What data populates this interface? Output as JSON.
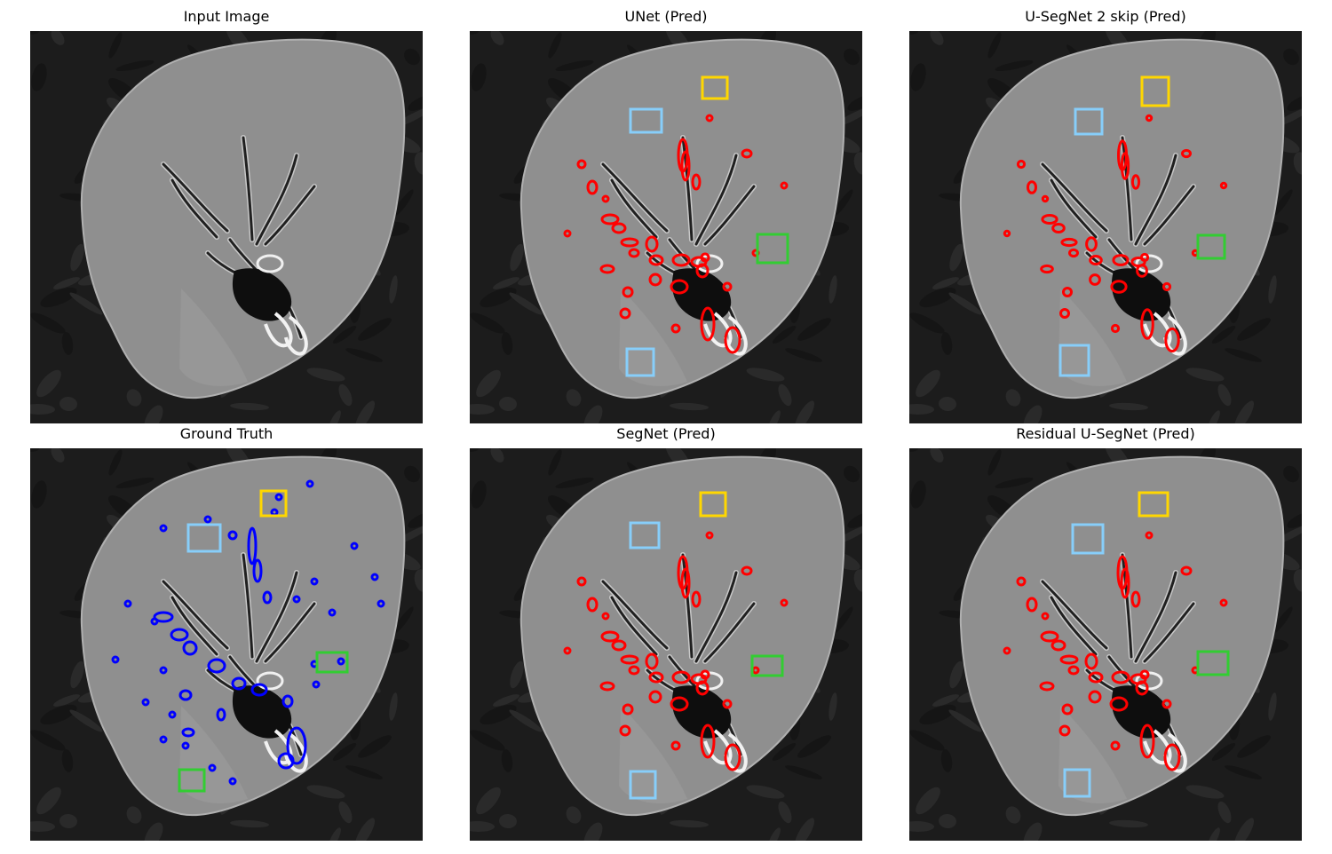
{
  "figure": {
    "panels": [
      {
        "id": "input",
        "title": "Input Image",
        "mask": "none",
        "mask_color": "",
        "boxes": []
      },
      {
        "id": "unet",
        "title": "UNet (Pred)",
        "mask": "pred",
        "mask_color": "#ff0000",
        "boxes": [
          {
            "color": "yellow"
          },
          {
            "color": "lightblue"
          },
          {
            "color": "green"
          },
          {
            "color": "lightblue"
          }
        ]
      },
      {
        "id": "usegnet2",
        "title": "U-SegNet 2 skip (Pred)",
        "mask": "pred",
        "mask_color": "#ff0000",
        "boxes": [
          {
            "color": "yellow"
          },
          {
            "color": "lightblue"
          },
          {
            "color": "green"
          },
          {
            "color": "lightblue"
          }
        ]
      },
      {
        "id": "gt",
        "title": "Ground Truth",
        "mask": "gt",
        "mask_color": "#0000ff",
        "boxes": [
          {
            "color": "yellow"
          },
          {
            "color": "lightblue"
          },
          {
            "color": "green"
          },
          {
            "color": "green"
          }
        ]
      },
      {
        "id": "segnet",
        "title": "SegNet (Pred)",
        "mask": "pred",
        "mask_color": "#ff0000",
        "boxes": [
          {
            "color": "yellow"
          },
          {
            "color": "lightblue"
          },
          {
            "color": "green"
          },
          {
            "color": "lightblue"
          }
        ]
      },
      {
        "id": "resusegnet",
        "title": "Residual U-SegNet (Pred)",
        "mask": "pred",
        "mask_color": "#ff0000",
        "boxes": [
          {
            "color": "yellow"
          },
          {
            "color": "lightblue"
          },
          {
            "color": "green"
          },
          {
            "color": "lightblue"
          }
        ]
      }
    ],
    "box_colors": {
      "yellow": "#ffd700",
      "lightblue": "#87cefa",
      "green": "#32cd32"
    },
    "image_colors": {
      "background": "#1c1c1c",
      "organ": "#8f8f8f",
      "vessel_dark": "#202020",
      "vessel_bright": "#e6e6e6"
    }
  }
}
